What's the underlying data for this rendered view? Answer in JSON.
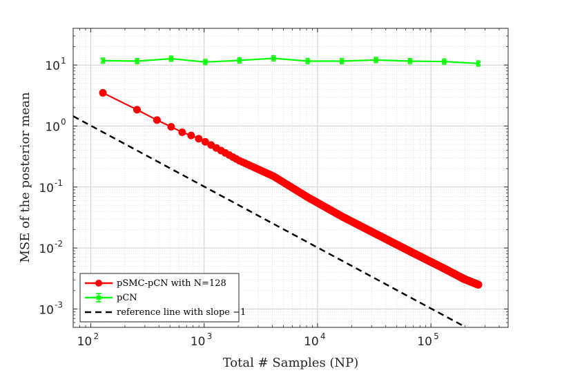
{
  "chart_data": {
    "type": "line",
    "xscale": "log",
    "yscale": "log",
    "xlim": [
      70,
      480000
    ],
    "ylim": [
      0.0005,
      40
    ],
    "xlabel": "Total # Samples (NP)",
    "ylabel": "MSE of the posterior mean",
    "grid": true,
    "minor_grid": true,
    "x_ticks": [
      {
        "base": "10",
        "exp": "2",
        "value": 100
      },
      {
        "base": "10",
        "exp": "3",
        "value": 1000
      },
      {
        "base": "10",
        "exp": "4",
        "value": 10000
      },
      {
        "base": "10",
        "exp": "5",
        "value": 100000
      }
    ],
    "y_ticks": [
      {
        "base": "10",
        "exp": "-3",
        "value": 0.001
      },
      {
        "base": "10",
        "exp": "-2",
        "value": 0.01
      },
      {
        "base": "10",
        "exp": "-1",
        "value": 0.1
      },
      {
        "base": "10",
        "exp": "0",
        "value": 1
      },
      {
        "base": "10",
        "exp": "1",
        "value": 10
      }
    ],
    "legend_position": "bottom-left",
    "series": [
      {
        "name": "pSMC-pCN with N=128",
        "color": "#ff0000",
        "marker": "circle",
        "dense_markers": true,
        "x": [
          128,
          256,
          384,
          512,
          640,
          768,
          896,
          1024,
          2048,
          4096,
          8192,
          16384,
          32768,
          65536,
          131072,
          196608,
          262144
        ],
        "y": [
          3.5,
          1.85,
          1.25,
          0.97,
          0.79,
          0.7,
          0.62,
          0.55,
          0.27,
          0.15,
          0.068,
          0.033,
          0.017,
          0.0088,
          0.0046,
          0.0031,
          0.0025
        ]
      },
      {
        "name": "pCN",
        "color": "#00ff00",
        "marker": "x-errorbar",
        "dense_markers": false,
        "x": [
          128,
          256,
          512,
          1024,
          2048,
          4096,
          8192,
          16384,
          32768,
          65536,
          131072,
          262144
        ],
        "y": [
          11.8,
          11.6,
          12.7,
          11.2,
          11.9,
          12.9,
          11.6,
          11.6,
          12.1,
          11.6,
          11.4,
          10.6
        ]
      },
      {
        "name": "reference line with slope −1",
        "color": "#000000",
        "marker": "none",
        "dashed": true,
        "dense_markers": false,
        "x": [
          70,
          200000
        ],
        "y": [
          1.45,
          0.00051
        ]
      }
    ]
  }
}
